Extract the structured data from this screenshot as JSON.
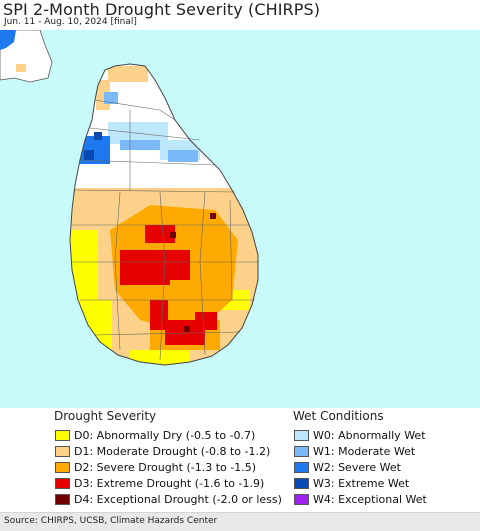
{
  "header": {
    "title": "SPI 2-Month Drought Severity (CHIRPS)",
    "subtitle": "Jun. 11 - Aug. 10, 2024 [final]"
  },
  "map": {
    "region": "Sri Lanka",
    "ocean_color": "#c9fafa",
    "land_base_color": "#ffffff",
    "border_color": "#555555"
  },
  "legend": {
    "drought": {
      "heading": "Drought Severity",
      "items": [
        {
          "label": "D0: Abnormally Dry (-0.5 to -0.7)",
          "color": "#ffff00"
        },
        {
          "label": "D1: Moderate Drought (-0.8 to -1.2)",
          "color": "#fcd28a"
        },
        {
          "label": "D2: Severe Drought (-1.3 to -1.5)",
          "color": "#ffaa00"
        },
        {
          "label": "D3: Extreme Drought (-1.6 to -1.9)",
          "color": "#e60000"
        },
        {
          "label": "D4: Exceptional Drought (-2.0 or less)",
          "color": "#730000"
        }
      ]
    },
    "wet": {
      "heading": "Wet Conditions",
      "items": [
        {
          "label": "W0: Abnormally Wet",
          "color": "#bde7fb"
        },
        {
          "label": "W1: Moderate Wet",
          "color": "#79b9f7"
        },
        {
          "label": "W2: Severe Wet",
          "color": "#1e78f0"
        },
        {
          "label": "W3: Extreme Wet",
          "color": "#0a4ab4"
        },
        {
          "label": "W4: Exceptional Wet",
          "color": "#a020f0"
        }
      ]
    }
  },
  "footer": {
    "source": "Source: CHIRPS, UCSB, Climate Hazards Center"
  }
}
